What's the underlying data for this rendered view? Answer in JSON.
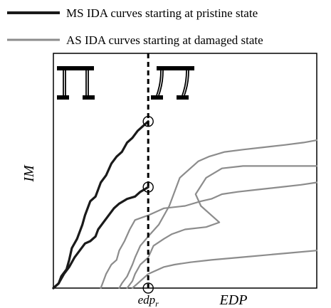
{
  "chart_data": {
    "type": "line",
    "title": "",
    "xlabel": "EDP",
    "ylabel": "IM",
    "x_tick_label": {
      "main": "edp",
      "subscript": "r"
    },
    "grid": false,
    "legend": {
      "placement": "top",
      "entries": [
        {
          "label": "MS IDA curves starting at pristine state",
          "color": "#1a1a1a"
        },
        {
          "label": "AS IDA curves starting at damaged state",
          "color": "#8c8c8c"
        }
      ]
    },
    "icons": [
      "undamaged-frame-icon",
      "damaged-frame-icon"
    ],
    "edp_r": 0.36,
    "series": [
      {
        "name": "",
        "group": "MS",
        "x": [
          0.0,
          0.02,
          0.03,
          0.05,
          0.06,
          0.07,
          0.09,
          0.11,
          0.12,
          0.14,
          0.16,
          0.18,
          0.2,
          0.22,
          0.24,
          0.26,
          0.28,
          0.3,
          0.32,
          0.36
        ],
        "y": [
          0.0,
          0.02,
          0.05,
          0.08,
          0.12,
          0.17,
          0.21,
          0.27,
          0.31,
          0.37,
          0.39,
          0.45,
          0.48,
          0.53,
          0.56,
          0.58,
          0.62,
          0.64,
          0.67,
          0.71
        ]
      },
      {
        "name": "",
        "group": "MS",
        "x": [
          0.0,
          0.02,
          0.04,
          0.06,
          0.08,
          0.1,
          0.12,
          0.14,
          0.16,
          0.17,
          0.19,
          0.21,
          0.23,
          0.25,
          0.28,
          0.31,
          0.33,
          0.36
        ],
        "y": [
          0.0,
          0.02,
          0.06,
          0.09,
          0.13,
          0.16,
          0.19,
          0.2,
          0.22,
          0.25,
          0.28,
          0.31,
          0.34,
          0.36,
          0.38,
          0.39,
          0.41,
          0.43
        ]
      },
      {
        "name": "",
        "group": "AS",
        "x": [
          0.25,
          0.26,
          0.28,
          0.3,
          0.31,
          0.33,
          0.36,
          0.4,
          0.44,
          0.48,
          0.52,
          0.55,
          0.59,
          0.65,
          0.72,
          0.8,
          0.88,
          0.95,
          1.0
        ],
        "y": [
          0.0,
          0.02,
          0.05,
          0.1,
          0.13,
          0.18,
          0.22,
          0.27,
          0.35,
          0.47,
          0.51,
          0.54,
          0.56,
          0.58,
          0.59,
          0.6,
          0.61,
          0.62,
          0.63
        ]
      },
      {
        "name": "",
        "group": "AS",
        "x": [
          0.28,
          0.3,
          0.31,
          0.33,
          0.36,
          0.38,
          0.42,
          0.45,
          0.5,
          0.58,
          0.63,
          0.6,
          0.56,
          0.54,
          0.58,
          0.64,
          0.72,
          0.82,
          0.9,
          1.0
        ],
        "y": [
          0.0,
          0.03,
          0.06,
          0.1,
          0.13,
          0.18,
          0.21,
          0.23,
          0.25,
          0.26,
          0.28,
          0.31,
          0.35,
          0.4,
          0.47,
          0.51,
          0.52,
          0.52,
          0.52,
          0.52
        ]
      },
      {
        "name": "",
        "group": "AS",
        "x": [
          0.18,
          0.2,
          0.22,
          0.24,
          0.25,
          0.27,
          0.29,
          0.31,
          0.36,
          0.42,
          0.5,
          0.56,
          0.6,
          0.64,
          0.7,
          0.78,
          0.86,
          0.94,
          1.0
        ],
        "y": [
          0.0,
          0.06,
          0.1,
          0.12,
          0.16,
          0.2,
          0.25,
          0.29,
          0.31,
          0.34,
          0.35,
          0.37,
          0.38,
          0.4,
          0.41,
          0.42,
          0.43,
          0.44,
          0.45
        ]
      },
      {
        "name": "",
        "group": "AS",
        "x": [
          0.3,
          0.32,
          0.34,
          0.36,
          0.38,
          0.42,
          0.46,
          0.52,
          0.6,
          0.7,
          0.8,
          0.9,
          1.0
        ],
        "y": [
          0.0,
          0.02,
          0.04,
          0.06,
          0.07,
          0.09,
          0.1,
          0.11,
          0.12,
          0.13,
          0.14,
          0.15,
          0.16
        ]
      }
    ],
    "markers": [
      {
        "x": 0.36,
        "y": 0.71
      },
      {
        "x": 0.36,
        "y": 0.43
      },
      {
        "x": 0.36,
        "y": 0.0
      }
    ]
  }
}
